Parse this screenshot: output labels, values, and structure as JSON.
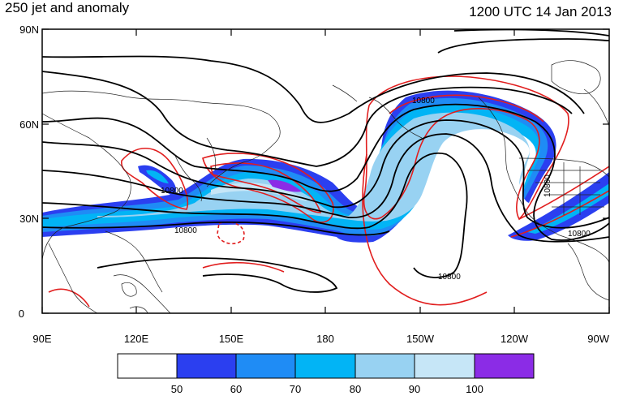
{
  "header": {
    "title": "250 jet and anomaly",
    "datetime": "1200 UTC 14 Jan 2013"
  },
  "map": {
    "lat_labels": [
      "90N",
      "60N",
      "30N",
      "0"
    ],
    "lon_labels": [
      "90E",
      "120E",
      "150E",
      "180",
      "150W",
      "120W",
      "90W"
    ],
    "contour_labels": [
      "10800",
      "10800",
      "10800",
      "10800",
      "10800",
      "10800"
    ]
  },
  "colorbar": {
    "levels": [
      "50",
      "60",
      "70",
      "80",
      "90",
      "100"
    ],
    "colors": [
      "#ffffff",
      "#2b3ff0",
      "#1f8cf5",
      "#02b4f5",
      "#98d2f2",
      "#c6e6f7",
      "#8b2ce6"
    ]
  },
  "colors": {
    "anomaly_contour": "#e11e1e",
    "height_contour": "#000000",
    "coastline": "#222222"
  }
}
